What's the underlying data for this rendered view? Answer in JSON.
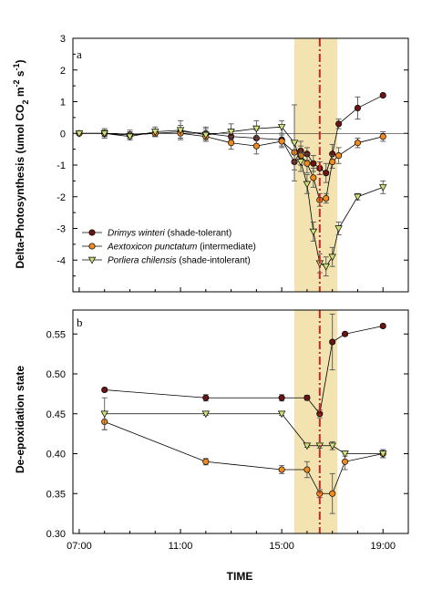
{
  "colors": {
    "shade_band": "#f2e3b0",
    "redline": "#c0282a",
    "drimys": "#6b1414",
    "aextoxicon": "#f08a1e",
    "porliera": "#cfe27a",
    "marker_edge": "#000000",
    "errorbar": "#555555"
  },
  "chart_data": [
    {
      "panel": "a",
      "type": "line",
      "ylabel": "Delta-Photosynthesis (umol CO2 m-2 s-1)",
      "ylim": [
        -5,
        3
      ],
      "yticks": [
        -4,
        -3,
        -2,
        -1,
        0,
        1,
        2,
        3
      ],
      "xlim": [
        6.75,
        20.0
      ],
      "x_tick_values": [
        7,
        11,
        15,
        19
      ],
      "x_tick_labels": [
        "07:00",
        "11:00",
        "15:00",
        "19:00"
      ],
      "shade_band": [
        15.5,
        17.2
      ],
      "vline": 16.5,
      "legend": [
        {
          "series": "Drimys winteri",
          "text_italic": "Drimys winteri",
          "text_rest": " (shade-tolerant)",
          "marker": "circle",
          "color_key": "drimys"
        },
        {
          "series": "Aextoxicon punctatum",
          "text_italic": "Aextoxicon punctatum",
          "text_rest": " (intermediate)",
          "marker": "circle",
          "color_key": "aextoxicon"
        },
        {
          "series": "Porliera chilensis",
          "text_italic": "Porliera chilensis",
          "text_rest": " (shade-intolerant)",
          "marker": "triangle",
          "color_key": "porliera"
        }
      ],
      "series": [
        {
          "name": "Drimys winteri",
          "marker": "circle",
          "color_key": "drimys",
          "x": [
            7.0,
            8.0,
            9.0,
            10.0,
            11.0,
            12.0,
            13.0,
            14.0,
            15.0,
            15.5,
            15.75,
            16.0,
            16.25,
            16.5,
            16.75,
            17.0,
            17.25,
            18.0,
            19.0
          ],
          "y": [
            0.0,
            0.0,
            -0.05,
            0.0,
            0.05,
            0.0,
            -0.1,
            -0.15,
            -0.2,
            -0.9,
            -0.55,
            -0.65,
            -0.95,
            -1.1,
            -1.25,
            -0.65,
            0.3,
            0.8,
            1.2
          ],
          "err": [
            0.0,
            0.1,
            0.15,
            0.1,
            0.2,
            0.2,
            0.2,
            0.25,
            0.2,
            0.25,
            0.3,
            0.2,
            0.25,
            0.2,
            0.3,
            0.3,
            0.15,
            0.35,
            0.05
          ]
        },
        {
          "name": "Aextoxicon punctatum",
          "marker": "circle",
          "color_key": "aextoxicon",
          "x": [
            7.0,
            8.0,
            9.0,
            10.0,
            11.0,
            12.0,
            13.0,
            14.0,
            15.0,
            15.5,
            15.75,
            16.0,
            16.25,
            16.5,
            16.75,
            17.0,
            17.25,
            18.0,
            19.0
          ],
          "y": [
            0.0,
            0.0,
            -0.05,
            0.0,
            0.0,
            -0.1,
            -0.3,
            -0.4,
            -0.25,
            -0.6,
            -0.7,
            -0.95,
            -1.4,
            -2.1,
            -2.05,
            -0.9,
            -0.7,
            -0.3,
            -0.1
          ],
          "err": [
            0.0,
            0.1,
            0.1,
            0.1,
            0.15,
            0.15,
            0.2,
            0.25,
            0.2,
            0.3,
            0.3,
            0.3,
            0.3,
            0.2,
            0.15,
            0.2,
            0.25,
            0.15,
            0.15
          ]
        },
        {
          "name": "Porliera chilensis",
          "marker": "triangle",
          "color_key": "porliera",
          "x": [
            7.0,
            8.0,
            9.0,
            10.0,
            11.0,
            12.0,
            13.0,
            14.0,
            15.0,
            15.5,
            15.75,
            16.0,
            16.25,
            16.5,
            16.75,
            17.0,
            17.25,
            18.0,
            19.0
          ],
          "y": [
            0.0,
            0.0,
            -0.1,
            0.05,
            0.1,
            -0.05,
            0.05,
            0.15,
            0.2,
            -0.3,
            -0.9,
            -1.6,
            -3.1,
            -4.1,
            -4.2,
            -3.9,
            -3.0,
            -2.0,
            -1.7
          ],
          "err": [
            0.0,
            0.15,
            0.1,
            0.15,
            0.3,
            0.2,
            0.25,
            0.25,
            0.2,
            1.2,
            0.3,
            0.3,
            0.3,
            0.3,
            0.3,
            0.3,
            0.2,
            0.1,
            0.2
          ]
        }
      ]
    },
    {
      "panel": "b",
      "type": "line",
      "ylabel": "De-epoxidation state",
      "xlabel": "TIME",
      "ylim": [
        0.3,
        0.58
      ],
      "yticks": [
        0.3,
        0.35,
        0.4,
        0.45,
        0.5,
        0.55
      ],
      "ytick_labels": [
        "0.30",
        "0.35",
        "0.40",
        "0.45",
        "0.50",
        "0.55"
      ],
      "xlim": [
        6.75,
        20.0
      ],
      "x_tick_values": [
        7,
        11,
        15,
        19
      ],
      "x_tick_labels": [
        "07:00",
        "11:00",
        "15:00",
        "19:00"
      ],
      "shade_band": [
        15.5,
        17.2
      ],
      "vline": 16.5,
      "series": [
        {
          "name": "Drimys winteri",
          "marker": "circle",
          "color_key": "drimys",
          "x": [
            8.0,
            12.0,
            15.0,
            16.0,
            16.5,
            17.0,
            17.5,
            19.0
          ],
          "y": [
            0.48,
            0.47,
            0.47,
            0.47,
            0.45,
            0.54,
            0.55,
            0.56
          ],
          "err": [
            0.002,
            0.004,
            0.004,
            0.003,
            0.005,
            0.035,
            0.002,
            0.002
          ]
        },
        {
          "name": "Aextoxicon punctatum",
          "marker": "circle",
          "color_key": "aextoxicon",
          "x": [
            8.0,
            12.0,
            15.0,
            16.0,
            16.5,
            17.0,
            17.5,
            19.0
          ],
          "y": [
            0.44,
            0.39,
            0.38,
            0.38,
            0.35,
            0.35,
            0.39,
            0.4
          ],
          "err": [
            0.01,
            0.004,
            0.005,
            0.01,
            0.005,
            0.025,
            0.01,
            0.005
          ]
        },
        {
          "name": "Porliera chilensis",
          "marker": "triangle",
          "color_key": "porliera",
          "x": [
            8.0,
            12.0,
            15.0,
            16.0,
            16.5,
            17.0,
            17.5,
            19.0
          ],
          "y": [
            0.45,
            0.45,
            0.45,
            0.41,
            0.41,
            0.41,
            0.4,
            0.4
          ],
          "err": [
            0.02,
            0.002,
            0.002,
            0.002,
            0.003,
            0.005,
            0.003,
            0.005
          ]
        }
      ]
    }
  ]
}
